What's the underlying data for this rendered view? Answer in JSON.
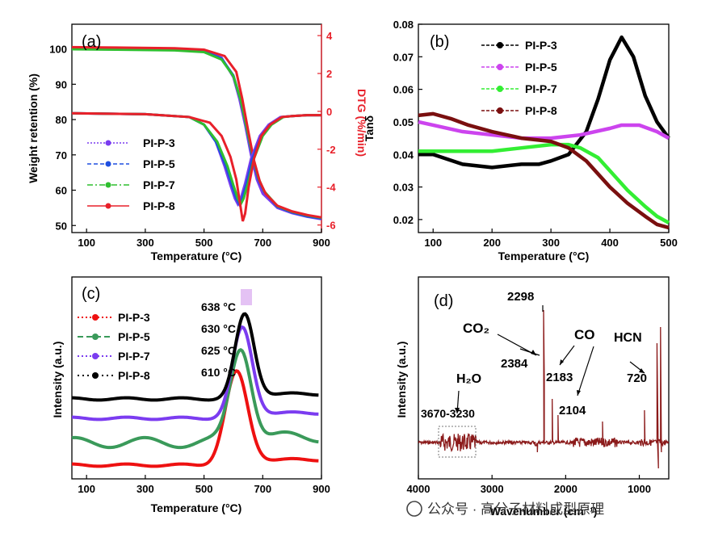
{
  "watermark": "公众号 · 高分子材料成型原理",
  "colors": {
    "pi3": "#7a3cf0",
    "pi5": "#1f4fe0",
    "pi7": "#2fbf2f",
    "pi8": "#e8202a",
    "dtg_axis": "#e8202a"
  },
  "chart_data": [
    {
      "type": "line",
      "panel_label": "(a)",
      "xlabel": "Temperature (°C)",
      "ylabel": "Weight retention (%)",
      "y2label": "DTG (%/min)",
      "xlim": [
        50,
        900
      ],
      "ylim": [
        48,
        107
      ],
      "y2lim": [
        -6.4,
        4.6
      ],
      "xticks": [
        100,
        300,
        500,
        700,
        900
      ],
      "yticks": [
        50,
        60,
        70,
        80,
        90,
        100
      ],
      "y2ticks": [
        -6,
        -4,
        -2,
        0,
        2,
        4
      ],
      "legend": [
        "PI-P-3",
        "PI-P-5",
        "PI-P-7",
        "PI-P-8"
      ],
      "weight_series": [
        {
          "name": "PI-P-3",
          "x": [
            50,
            200,
            400,
            500,
            560,
            600,
            620,
            640,
            660,
            680,
            700,
            750,
            800,
            850,
            900
          ],
          "y": [
            100.4,
            100.3,
            100,
            99.5,
            97.5,
            92,
            86,
            78.5,
            70,
            63,
            59,
            55,
            53.5,
            52.5,
            51.8
          ]
        },
        {
          "name": "PI-P-5",
          "x": [
            50,
            200,
            400,
            500,
            560,
            600,
            625,
            645,
            665,
            685,
            705,
            750,
            800,
            850,
            900
          ],
          "y": [
            100.2,
            100.1,
            99.8,
            99.3,
            97.3,
            92.5,
            85.5,
            77.5,
            69.5,
            63,
            59.5,
            55.3,
            53.7,
            52.6,
            52
          ]
        },
        {
          "name": "PI-P-7",
          "x": [
            50,
            200,
            400,
            500,
            560,
            600,
            625,
            645,
            665,
            685,
            705,
            750,
            800,
            850,
            900
          ],
          "y": [
            99.9,
            99.8,
            99.6,
            99.1,
            97,
            92.3,
            85.5,
            77.8,
            70,
            63.5,
            59.7,
            55.5,
            53.9,
            52.9,
            52.2
          ]
        },
        {
          "name": "PI-P-8",
          "x": [
            50,
            200,
            400,
            500,
            570,
            610,
            630,
            650,
            670,
            690,
            710,
            750,
            800,
            850,
            900
          ],
          "y": [
            100.5,
            100.4,
            100.2,
            99.8,
            98,
            93.5,
            86,
            77,
            68.5,
            62.5,
            59,
            55.6,
            54,
            53,
            52.3
          ]
        }
      ],
      "dtg_series": [
        {
          "name": "PI-P-3",
          "x": [
            50,
            300,
            450,
            500,
            540,
            570,
            590,
            605,
            615,
            625,
            640,
            660,
            690,
            720,
            760,
            800,
            850,
            900
          ],
          "y": [
            -0.1,
            -0.15,
            -0.3,
            -0.7,
            -1.6,
            -2.9,
            -3.9,
            -4.6,
            -4.9,
            -4.6,
            -3.8,
            -2.5,
            -1.3,
            -0.7,
            -0.3,
            -0.25,
            -0.2,
            -0.2
          ]
        },
        {
          "name": "PI-P-5",
          "x": [
            50,
            300,
            450,
            500,
            540,
            575,
            595,
            610,
            620,
            630,
            645,
            665,
            695,
            725,
            765,
            800,
            850,
            900
          ],
          "y": [
            -0.1,
            -0.15,
            -0.3,
            -0.7,
            -1.6,
            -2.9,
            -3.9,
            -4.6,
            -4.9,
            -4.6,
            -3.8,
            -2.5,
            -1.3,
            -0.7,
            -0.3,
            -0.25,
            -0.2,
            -0.2
          ]
        },
        {
          "name": "PI-P-7",
          "x": [
            50,
            300,
            450,
            500,
            545,
            580,
            600,
            615,
            625,
            635,
            650,
            670,
            700,
            730,
            770,
            800,
            850,
            900
          ],
          "y": [
            -0.1,
            -0.15,
            -0.3,
            -0.7,
            -1.6,
            -2.9,
            -3.9,
            -4.6,
            -4.9,
            -4.6,
            -3.8,
            -2.5,
            -1.3,
            -0.7,
            -0.3,
            -0.25,
            -0.2,
            -0.2
          ]
        },
        {
          "name": "PI-P-8",
          "x": [
            50,
            300,
            450,
            520,
            560,
            590,
            610,
            622,
            632,
            640,
            652,
            670,
            695,
            725,
            765,
            800,
            850,
            900
          ],
          "y": [
            -0.1,
            -0.15,
            -0.3,
            -0.6,
            -1.3,
            -2.4,
            -3.6,
            -4.8,
            -5.8,
            -5.4,
            -4,
            -2.5,
            -1.3,
            -0.7,
            -0.3,
            -0.25,
            -0.2,
            -0.2
          ]
        }
      ]
    },
    {
      "type": "line",
      "panel_label": "(b)",
      "xlabel": "Temperature (°C)",
      "ylabel": "Tanδ",
      "xlim": [
        75,
        500
      ],
      "ylim": [
        0.016,
        0.08
      ],
      "xticks": [
        100,
        200,
        300,
        400,
        500
      ],
      "yticks": [
        0.02,
        0.03,
        0.04,
        0.05,
        0.06,
        0.07,
        0.08
      ],
      "legend": [
        "PI-P-3",
        "PI-P-5",
        "PI-P-7",
        "PI-P-8"
      ],
      "series": [
        {
          "name": "PI-P-3",
          "x": [
            75,
            100,
            150,
            200,
            250,
            280,
            300,
            330,
            360,
            380,
            400,
            420,
            440,
            460,
            480,
            500
          ],
          "y": [
            0.04,
            0.04,
            0.037,
            0.036,
            0.037,
            0.037,
            0.038,
            0.04,
            0.047,
            0.057,
            0.069,
            0.076,
            0.07,
            0.058,
            0.05,
            0.045
          ]
        },
        {
          "name": "PI-P-5",
          "x": [
            75,
            100,
            150,
            200,
            250,
            300,
            350,
            400,
            420,
            450,
            480,
            500
          ],
          "y": [
            0.05,
            0.049,
            0.047,
            0.046,
            0.045,
            0.045,
            0.046,
            0.048,
            0.049,
            0.049,
            0.047,
            0.045
          ]
        },
        {
          "name": "PI-P-7",
          "x": [
            75,
            100,
            150,
            200,
            250,
            300,
            330,
            350,
            380,
            400,
            430,
            460,
            480,
            500
          ],
          "y": [
            0.041,
            0.041,
            0.041,
            0.041,
            0.042,
            0.043,
            0.043,
            0.042,
            0.039,
            0.035,
            0.029,
            0.024,
            0.021,
            0.019
          ]
        },
        {
          "name": "PI-P-8",
          "x": [
            75,
            100,
            130,
            160,
            200,
            250,
            300,
            330,
            360,
            400,
            430,
            460,
            480,
            500
          ],
          "y": [
            0.052,
            0.0525,
            0.051,
            0.049,
            0.047,
            0.045,
            0.044,
            0.042,
            0.038,
            0.03,
            0.025,
            0.021,
            0.0185,
            0.0175
          ]
        }
      ]
    },
    {
      "type": "line",
      "panel_label": "(c)",
      "xlabel": "Temperature (°C)",
      "ylabel": "Intensity (a.u.)",
      "xlim": [
        50,
        900
      ],
      "xticks": [
        100,
        300,
        500,
        700,
        900
      ],
      "legend": [
        "PI-P-3",
        "PI-P-5",
        "PI-P-7",
        "PI-P-8"
      ],
      "peaks": [
        {
          "name": "PI-P-3",
          "T": 610,
          "label": "610 °C"
        },
        {
          "name": "PI-P-5",
          "T": 625,
          "label": "625 °C"
        },
        {
          "name": "PI-P-7",
          "T": 630,
          "label": "630 °C"
        },
        {
          "name": "PI-P-8",
          "T": 638,
          "label": "638 °C"
        }
      ],
      "series": [
        {
          "name": "PI-P-3",
          "baseline": 0,
          "height": 6.4,
          "width": 38
        },
        {
          "name": "PI-P-5",
          "baseline": 1.4,
          "height": 6.6,
          "width": 36
        },
        {
          "name": "PI-P-7",
          "baseline": 2.9,
          "height": 6.2,
          "width": 34
        },
        {
          "name": "PI-P-8",
          "baseline": 4.2,
          "height": 5.8,
          "width": 32
        }
      ]
    },
    {
      "type": "line",
      "panel_label": "(d)",
      "xlabel": "Wavenumber (cm⁻¹)",
      "ylabel": "Intensity (a.u.)",
      "xlim": [
        4000,
        600
      ],
      "xticks": [
        4000,
        3000,
        2000,
        1000
      ],
      "annotations": [
        "CO₂",
        "2298",
        "2384",
        "CO",
        "2183",
        "2104",
        "HCN",
        "720",
        "H₂O",
        "3670-3230"
      ],
      "bands_cm": [
        3670,
        3230,
        2384,
        2298,
        2183,
        2104,
        720
      ]
    }
  ]
}
